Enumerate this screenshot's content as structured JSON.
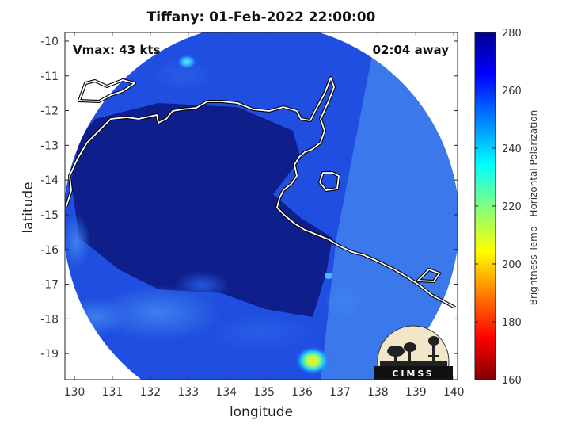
{
  "title": "Tiffany: 01-Feb-2022 22:00:00",
  "xlabel": "longitude",
  "ylabel": "latitude",
  "annotations": {
    "vmax": "Vmax: 43 kts",
    "time_away": "02:04 away"
  },
  "colorbar": {
    "label": "Brightness Temp - Horizontal Polarization",
    "ticks": [
      "280",
      "260",
      "240",
      "220",
      "200",
      "180",
      "160"
    ],
    "range": [
      160,
      280
    ],
    "colormap": [
      "#800000",
      "#ff0000",
      "#ff8000",
      "#ffff00",
      "#80ff80",
      "#00ffff",
      "#0080ff",
      "#0000ff",
      "#00008f"
    ]
  },
  "axes": {
    "xticks": [
      "130",
      "131",
      "132",
      "133",
      "134",
      "135",
      "136",
      "137",
      "138",
      "139",
      "140"
    ],
    "yticks": [
      "-10",
      "-11",
      "-12",
      "-13",
      "-14",
      "-15",
      "-16",
      "-17",
      "-18",
      "-19"
    ],
    "xlim": [
      129.75,
      140.1
    ],
    "ylim": [
      -19.75,
      -9.75
    ]
  },
  "logo": {
    "text": "CIMSS"
  },
  "colors": {
    "swath_dark": "#0e1f8c",
    "swath_mid": "#1f4ee0",
    "swath_light": "#3a78ec",
    "coast": "#ffffff",
    "border": "#000000"
  },
  "chart_data": {
    "type": "heatmap",
    "title": "Tiffany: 01-Feb-2022 22:00:00",
    "xlabel": "longitude",
    "ylabel": "latitude",
    "xlim": [
      129.75,
      140.1
    ],
    "ylim": [
      -19.75,
      -9.75
    ],
    "colorbar_range": [
      160,
      280
    ],
    "colorbar_label": "Brightness Temp - Horizontal Polarization",
    "storm": "Tiffany",
    "vmax": "43 kts",
    "grid": false
  }
}
